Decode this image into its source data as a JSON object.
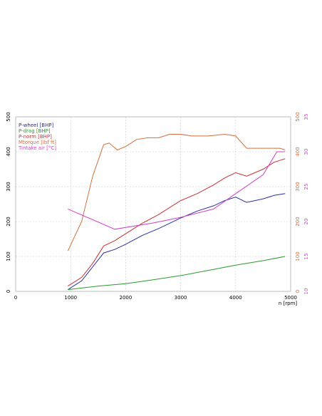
{
  "chart_data": {
    "type": "line",
    "x_label": "n [rpm]",
    "xlim": [
      0,
      5000
    ],
    "xticks": [
      0,
      1000,
      2000,
      3000,
      4000,
      5000
    ],
    "ylim": [
      0,
      500
    ],
    "yticks": [
      0,
      100,
      200,
      300,
      400,
      500
    ],
    "y2lim": [
      0,
      500
    ],
    "y2ticks": [
      0,
      100,
      200,
      300,
      400,
      500
    ],
    "y2color": "#d0703a",
    "y3lim": [
      10,
      35
    ],
    "y3ticks": [
      10,
      15,
      20,
      25,
      30,
      35
    ],
    "y3color": "#d040c8",
    "grid": true,
    "legend": "upper left",
    "series": [
      {
        "name": "P-wheel [BHP]",
        "color": "#2a2ea0",
        "axis": "y",
        "x": [
          950,
          1200,
          1400,
          1600,
          1800,
          2000,
          2300,
          2600,
          3000,
          3300,
          3600,
          3800,
          4000,
          4200,
          4500,
          4700,
          4900
        ],
        "values": [
          5,
          30,
          70,
          110,
          120,
          135,
          160,
          180,
          210,
          230,
          245,
          260,
          270,
          255,
          265,
          275,
          280
        ]
      },
      {
        "name": "P-drag [BHP]",
        "color": "#2a9a2a",
        "axis": "y",
        "x": [
          950,
          1500,
          2000,
          2500,
          3000,
          3500,
          4000,
          4500,
          4900
        ],
        "values": [
          5,
          15,
          22,
          33,
          45,
          60,
          75,
          88,
          100
        ]
      },
      {
        "name": "P-norm [BHP]",
        "color": "#c83030",
        "axis": "y",
        "x": [
          950,
          1200,
          1400,
          1600,
          1800,
          2000,
          2300,
          2600,
          3000,
          3300,
          3600,
          3800,
          4000,
          4200,
          4500,
          4700,
          4900
        ],
        "values": [
          15,
          40,
          80,
          130,
          145,
          165,
          195,
          220,
          260,
          280,
          305,
          325,
          340,
          330,
          350,
          370,
          380
        ]
      },
      {
        "name": "Mtorque [lbf ft]",
        "color": "#d0703a",
        "axis": "y2",
        "x": [
          950,
          1200,
          1400,
          1600,
          1700,
          1850,
          2000,
          2200,
          2400,
          2600,
          2800,
          3000,
          3200,
          3500,
          3800,
          4000,
          4200,
          4500,
          4800,
          4900
        ],
        "values": [
          116,
          200,
          330,
          420,
          425,
          405,
          415,
          435,
          440,
          440,
          450,
          450,
          445,
          445,
          450,
          445,
          410,
          410,
          410,
          405
        ]
      },
      {
        "name": "Tintake air [°C]",
        "color": "#d040c8",
        "axis": "y3",
        "x": [
          950,
          1800,
          2500,
          3000,
          3600,
          4000,
          4500,
          4750,
          4900
        ],
        "values": [
          21.8,
          18.9,
          19.8,
          20.6,
          21.8,
          24,
          26.7,
          30,
          30
        ]
      }
    ]
  }
}
